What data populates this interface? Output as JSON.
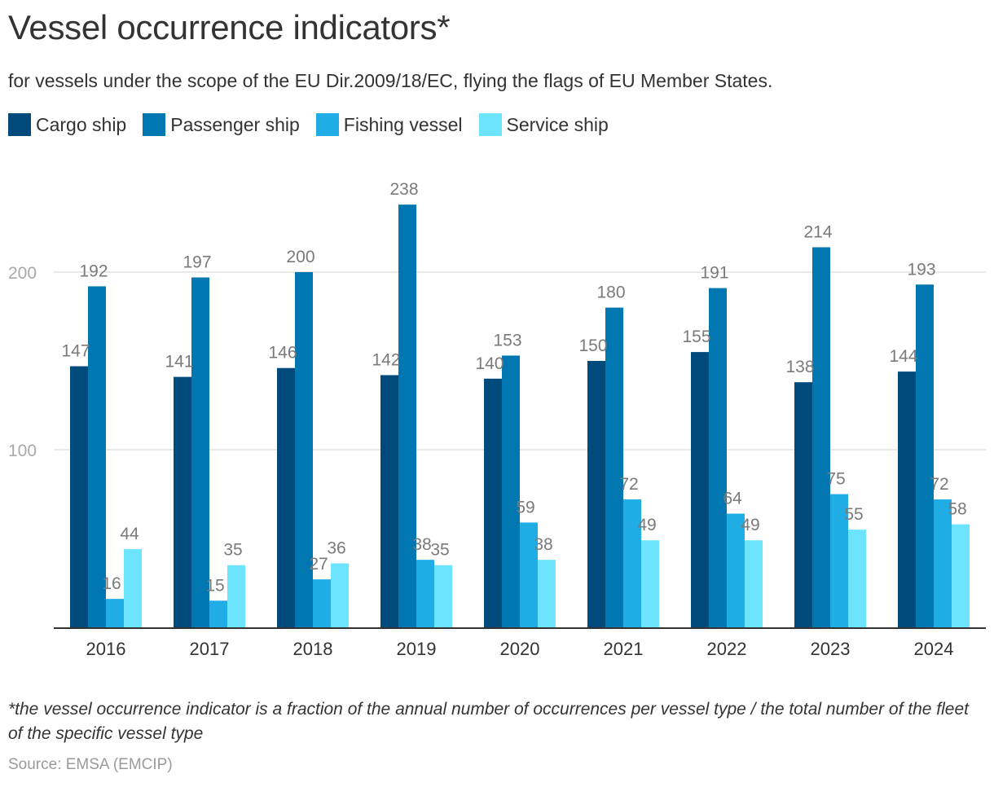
{
  "chart_data": {
    "type": "bar",
    "title": "Vessel occurrence indicators*",
    "subtitle": "for vessels under the scope of the EU Dir.2009/18/EC, flying the flags of EU Member States.",
    "xlabel": "",
    "ylabel": "",
    "categories": [
      "2016",
      "2017",
      "2018",
      "2019",
      "2020",
      "2021",
      "2022",
      "2023",
      "2024"
    ],
    "series": [
      {
        "name": "Cargo ship",
        "color": "#004b7c",
        "values": [
          147,
          141,
          146,
          142,
          140,
          150,
          155,
          138,
          144
        ]
      },
      {
        "name": "Passenger ship",
        "color": "#0077b0",
        "values": [
          192,
          197,
          200,
          238,
          153,
          180,
          191,
          214,
          193
        ]
      },
      {
        "name": "Fishing vessel",
        "color": "#20ade5",
        "values": [
          16,
          15,
          27,
          38,
          59,
          72,
          64,
          75,
          72
        ]
      },
      {
        "name": "Service ship",
        "color": "#6de4ff",
        "values": [
          44,
          35,
          36,
          35,
          38,
          49,
          49,
          55,
          58
        ]
      }
    ],
    "yticks": [
      100,
      200
    ],
    "ylim": [
      0,
      250
    ],
    "grid": true,
    "legend_position": "top-left",
    "data_labels": true
  },
  "footnote": "*the vessel occurrence indicator is a fraction of the annual number of occurrences per vessel type / the total number of the fleet of the specific vessel type",
  "source": "Source: EMSA (EMCIP)"
}
